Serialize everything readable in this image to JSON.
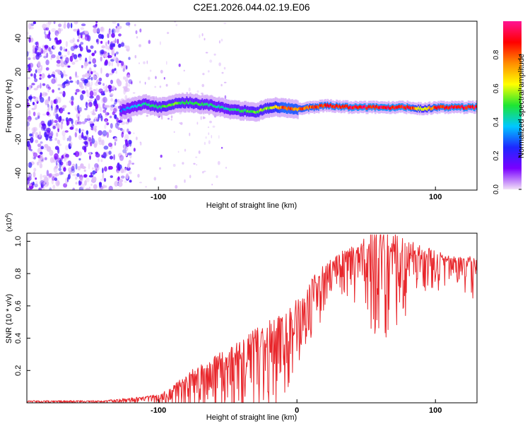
{
  "title": "C2E1.2026.044.02.19.E06",
  "colors": {
    "snr_line": "#e8262b",
    "frame": "#000000",
    "background": "#ffffff"
  },
  "chart_data": [
    {
      "type": "heatmap",
      "name": "spectrogram",
      "xlabel": "Height of straight line (km)",
      "ylabel": "Frequency (Hz)",
      "xlim": [
        -195,
        130
      ],
      "ylim": [
        -50,
        50
      ],
      "x_ticks": [
        -100,
        100
      ],
      "x_tick_labels": [
        "-100",
        "100"
      ],
      "y_ticks": [
        -40,
        -20,
        0,
        20,
        40
      ],
      "y_tick_labels": [
        "-40",
        "-20",
        "0",
        "20",
        "40"
      ],
      "colorbar": {
        "label": "Normalized spectral amplitude",
        "range": [
          0,
          1
        ],
        "ticks": [
          0.0,
          0.2,
          0.4,
          0.6,
          0.8
        ],
        "tick_labels": [
          "0.0",
          "0.2",
          "0.4",
          "0.6",
          "0.8"
        ],
        "colormap": [
          "#f2e1f7",
          "#7a00ff",
          "#1e28ff",
          "#00c8ff",
          "#1ee632",
          "#ffff00",
          "#ff8c00",
          "#ff0000",
          "#ff1493"
        ]
      },
      "noise_region_x": [
        -195,
        -120
      ],
      "signal_track": {
        "x": [
          -128,
          -120,
          -110,
          -100,
          -90,
          -80,
          -70,
          -60,
          -50,
          -40,
          -30,
          -20,
          -10,
          0,
          10,
          20,
          40,
          60,
          80,
          90,
          100,
          110,
          130
        ],
        "freq": [
          -3,
          -1,
          1,
          -1,
          1,
          2,
          1,
          0,
          -2,
          -3,
          -4,
          -1,
          -1,
          -2,
          -1,
          0,
          -1,
          -1,
          -1,
          -2,
          -1,
          -1,
          -1
        ],
        "amplitude": [
          0.3,
          0.4,
          0.45,
          0.5,
          0.55,
          0.5,
          0.5,
          0.45,
          0.45,
          0.5,
          0.55,
          0.6,
          0.85,
          0.8,
          0.85,
          0.9,
          0.95,
          0.95,
          0.95,
          0.6,
          0.9,
          0.95,
          0.95
        ]
      }
    },
    {
      "type": "line",
      "name": "snr",
      "xlabel": "Height of straight line (km)",
      "ylabel": "SNR (10 * v/v)",
      "y_multiplier_label": "(x10",
      "y_multiplier_exp": "4",
      "y_multiplier_close": ")",
      "xlim": [
        -195,
        130
      ],
      "ylim": [
        0,
        1.05
      ],
      "x_ticks": [
        -100,
        0,
        100
      ],
      "x_tick_labels": [
        "-100",
        "0",
        "100"
      ],
      "y_ticks": [
        0.2,
        0.4,
        0.6,
        0.8,
        1.0
      ],
      "y_tick_labels": [
        "0.2",
        "0.4",
        "0.6",
        "0.8",
        "1.0"
      ],
      "envelope": {
        "x": [
          -195,
          -140,
          -125,
          -110,
          -100,
          -90,
          -85,
          -80,
          -70,
          -60,
          -50,
          -40,
          -30,
          -20,
          -10,
          0,
          10,
          15,
          20,
          25,
          30,
          40,
          50,
          60,
          70,
          80,
          90,
          100,
          110,
          120,
          130
        ],
        "mean": [
          0.01,
          0.01,
          0.02,
          0.03,
          0.04,
          0.07,
          0.11,
          0.14,
          0.17,
          0.22,
          0.26,
          0.3,
          0.36,
          0.4,
          0.45,
          0.52,
          0.66,
          0.74,
          0.8,
          0.86,
          0.88,
          0.9,
          0.93,
          0.94,
          0.93,
          0.91,
          0.9,
          0.89,
          0.87,
          0.86,
          0.85
        ],
        "spread": [
          0.008,
          0.01,
          0.015,
          0.02,
          0.03,
          0.05,
          0.09,
          0.1,
          0.12,
          0.14,
          0.16,
          0.18,
          0.2,
          0.22,
          0.22,
          0.24,
          0.2,
          0.15,
          0.12,
          0.1,
          0.1,
          0.14,
          0.22,
          0.3,
          0.24,
          0.2,
          0.14,
          0.12,
          0.08,
          0.08,
          0.15
        ]
      }
    }
  ]
}
